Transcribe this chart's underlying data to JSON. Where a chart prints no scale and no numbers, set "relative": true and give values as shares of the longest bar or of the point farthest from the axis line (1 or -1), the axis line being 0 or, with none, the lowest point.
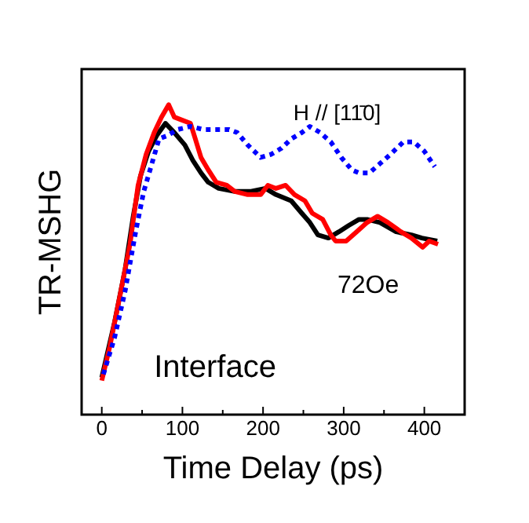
{
  "chart_data": {
    "type": "line",
    "xlabel": "Time Delay (ps)",
    "ylabel": "TR-MSHG",
    "relative": true,
    "xlim": [
      -25,
      450
    ],
    "xticks": [
      0,
      {
        "value": 50,
        "label": null
      },
      100,
      {
        "value": 150,
        "label": null
      },
      200,
      {
        "value": 250,
        "label": null
      },
      300,
      {
        "value": 350,
        "label": null
      },
      400
    ],
    "grid": false,
    "legend": false,
    "marker": "none",
    "annotations": [
      "H // [11̄0]",
      "72Oe",
      "Interface"
    ],
    "series": [
      {
        "color": "#000000",
        "line_style": "solid",
        "x": [
          0,
          16,
          29,
          39,
          48,
          58,
          68,
          79,
          90,
          103,
          113,
          123,
          132,
          145,
          165,
          184,
          203,
          216,
          235,
          248,
          258,
          268,
          281,
          294,
          306,
          319,
          329,
          345,
          365,
          384,
          397,
          416
        ],
        "values": [
          0.12,
          0.3,
          0.47,
          0.64,
          0.77,
          0.85,
          0.9,
          0.94,
          0.91,
          0.87,
          0.82,
          0.78,
          0.75,
          0.73,
          0.72,
          0.72,
          0.73,
          0.71,
          0.69,
          0.65,
          0.62,
          0.58,
          0.57,
          0.59,
          0.61,
          0.63,
          0.63,
          0.62,
          0.59,
          0.58,
          0.57,
          0.56
        ]
      },
      {
        "color": "#ff0000",
        "line_style": "solid",
        "x": [
          0,
          10,
          23,
          35,
          45,
          55,
          65,
          74,
          83,
          90,
          100,
          110,
          116,
          123,
          132,
          142,
          155,
          165,
          181,
          197,
          206,
          216,
          228,
          239,
          252,
          261,
          274,
          284,
          290,
          303,
          316,
          329,
          342,
          355,
          371,
          384,
          398,
          406,
          417
        ],
        "values": [
          0.11,
          0.22,
          0.39,
          0.55,
          0.74,
          0.84,
          0.91,
          0.96,
          1,
          0.96,
          0.95,
          0.94,
          0.89,
          0.83,
          0.79,
          0.75,
          0.74,
          0.72,
          0.71,
          0.71,
          0.74,
          0.73,
          0.74,
          0.71,
          0.69,
          0.65,
          0.63,
          0.58,
          0.56,
          0.56,
          0.59,
          0.62,
          0.64,
          0.62,
          0.59,
          0.57,
          0.54,
          0.56,
          0.55
        ]
      },
      {
        "color": "#0000ff",
        "line_style": "dotted",
        "x": [
          2,
          16,
          29,
          42,
          52,
          61,
          71,
          81,
          94,
          110,
          126,
          142,
          158,
          168,
          181,
          197,
          210,
          223,
          235,
          248,
          258,
          271,
          284,
          297,
          310,
          319,
          332,
          345,
          358,
          374,
          387,
          400,
          413
        ],
        "values": [
          0.13,
          0.25,
          0.4,
          0.59,
          0.72,
          0.8,
          0.89,
          0.9,
          0.92,
          0.93,
          0.92,
          0.92,
          0.92,
          0.91,
          0.87,
          0.83,
          0.84,
          0.86,
          0.89,
          0.91,
          0.93,
          0.91,
          0.88,
          0.83,
          0.79,
          0.78,
          0.78,
          0.81,
          0.84,
          0.88,
          0.88,
          0.85,
          0.8
        ]
      }
    ]
  }
}
